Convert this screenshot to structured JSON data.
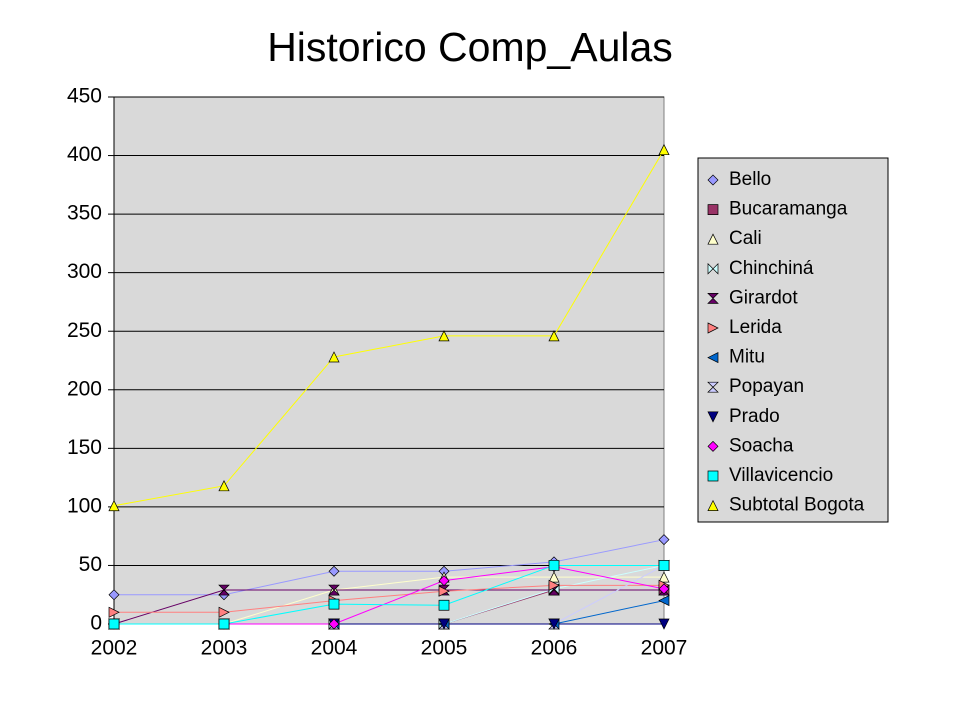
{
  "chart_data": {
    "type": "line",
    "title": "Historico Comp_Aulas",
    "categories": [
      "2002",
      "2003",
      "2004",
      "2005",
      "2006",
      "2007"
    ],
    "ylim": [
      0,
      450
    ],
    "yticks": [
      0,
      50,
      100,
      150,
      200,
      250,
      300,
      350,
      400,
      450
    ],
    "grid": true,
    "legend": "right",
    "series": [
      {
        "name": "Bello",
        "color": "#9999ff",
        "marker": "diamond",
        "values": [
          25,
          25,
          45,
          45,
          53,
          72
        ]
      },
      {
        "name": "Bucaramanga",
        "color": "#993366",
        "marker": "square",
        "values": [
          0,
          0,
          0,
          0,
          29,
          29
        ]
      },
      {
        "name": "Cali",
        "color": "#ffffcc",
        "marker": "triangle",
        "values": [
          0,
          0,
          29,
          40,
          40,
          40
        ]
      },
      {
        "name": "Chinchiná",
        "color": "#ccffff",
        "marker": "bowtie",
        "values": [
          0,
          0,
          0,
          0,
          30,
          50
        ]
      },
      {
        "name": "Girardot",
        "color": "#660066",
        "marker": "hourglass",
        "values": [
          0,
          29,
          29,
          29,
          29,
          29
        ]
      },
      {
        "name": "Lerida",
        "color": "#ff8080",
        "marker": "triangle-right",
        "values": [
          10,
          10,
          20,
          28,
          33,
          33
        ]
      },
      {
        "name": "Mitu",
        "color": "#0066cc",
        "marker": "triangle-left",
        "values": [
          0,
          0,
          0,
          0,
          0,
          20
        ]
      },
      {
        "name": "Popayan",
        "color": "#ccccff",
        "marker": "hourglass",
        "values": [
          0,
          0,
          0,
          0,
          0,
          50
        ]
      },
      {
        "name": "Prado",
        "color": "#000080",
        "marker": "triangle-down",
        "values": [
          0,
          0,
          0,
          0,
          0,
          0
        ]
      },
      {
        "name": "Soacha",
        "color": "#ff00ff",
        "marker": "diamond",
        "values": [
          0,
          0,
          0,
          37,
          49,
          30
        ]
      },
      {
        "name": "Villavicencio",
        "color": "#00ffff",
        "marker": "square",
        "values": [
          0,
          0,
          17,
          16,
          50,
          50
        ]
      },
      {
        "name": "Subtotal Bogota",
        "color": "#ffff00",
        "marker": "triangle",
        "values": [
          101,
          118,
          228,
          246,
          246,
          405
        ]
      }
    ]
  }
}
